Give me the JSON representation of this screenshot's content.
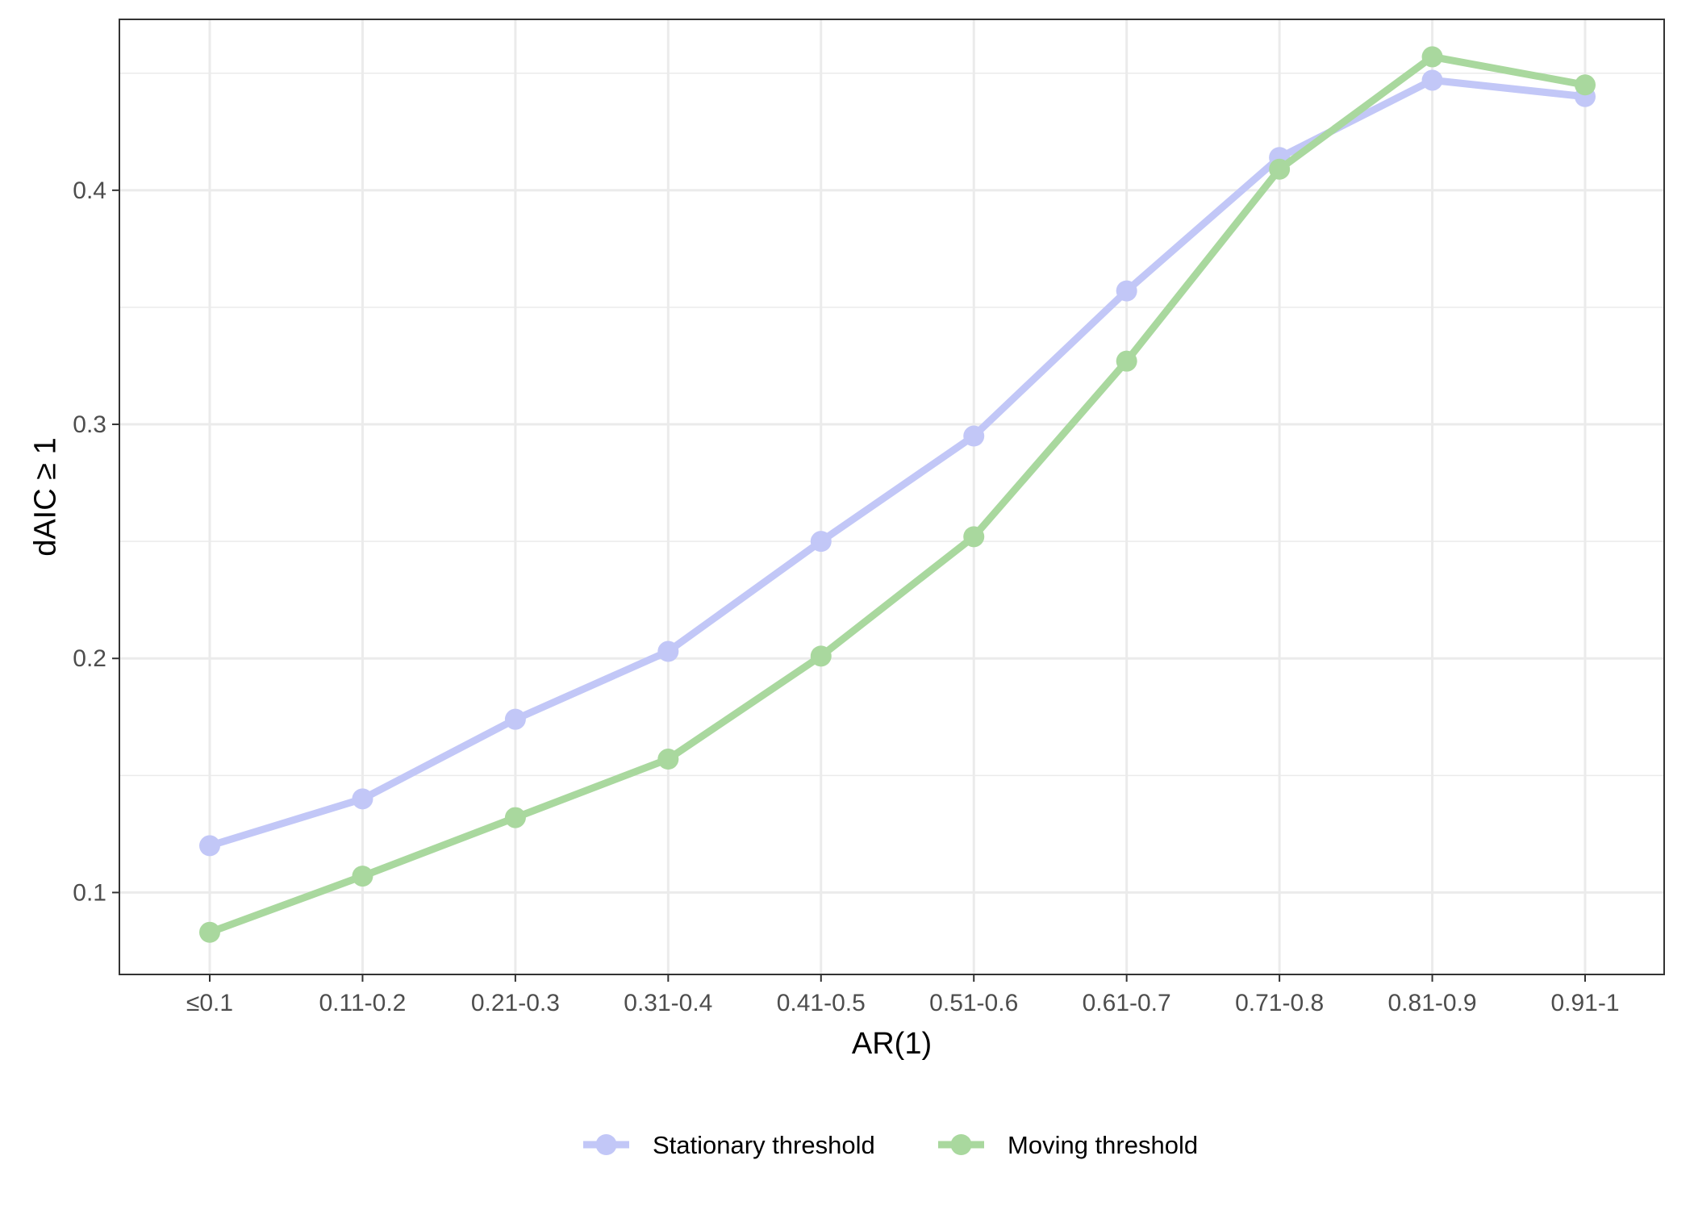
{
  "chart_data": {
    "type": "line",
    "xlabel": "AR(1)",
    "ylabel": "dAIC ≥ 1",
    "categories": [
      "≤0.1",
      "0.11-0.2",
      "0.21-0.3",
      "0.31-0.4",
      "0.41-0.5",
      "0.51-0.6",
      "0.61-0.7",
      "0.71-0.8",
      "0.81-0.9",
      "0.91-1"
    ],
    "ylim": [
      0.065,
      0.473
    ],
    "yticks": [
      0.1,
      0.2,
      0.3,
      0.4
    ],
    "ytick_labels": [
      "0.1",
      "0.2",
      "0.3",
      "0.4"
    ],
    "grid": true,
    "legend_position": "bottom",
    "series": [
      {
        "name": "Stationary threshold",
        "color": "#c2c7f7",
        "values": [
          0.12,
          0.14,
          0.174,
          0.203,
          0.25,
          0.295,
          0.357,
          0.414,
          0.447,
          0.44
        ]
      },
      {
        "name": "Moving threshold",
        "color": "#a9d89e",
        "values": [
          0.083,
          0.107,
          0.132,
          0.157,
          0.201,
          0.252,
          0.327,
          0.409,
          0.457,
          0.445
        ]
      }
    ]
  }
}
